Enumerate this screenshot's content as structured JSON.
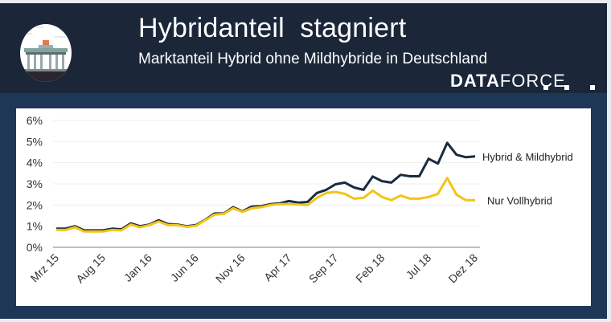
{
  "header": {
    "title": "Hybridanteil  stagniert",
    "subtitle": "Marktanteil Hybrid ohne Mildhybride in Deutschland",
    "brand_bold": "DATA",
    "brand_light": "FORCE",
    "logo": "brandenburg-gate-icon"
  },
  "colors": {
    "header_bg": "#1b2739",
    "band_bg": "#1f3756",
    "hybrid_mild": "#1b2a40",
    "full_hybrid": "#f2c417"
  },
  "chart_data": {
    "type": "line",
    "title": "",
    "xlabel": "",
    "ylabel": "",
    "ylim": [
      0,
      6
    ],
    "yticks": [
      "0%",
      "1%",
      "2%",
      "3%",
      "4%",
      "5%",
      "6%"
    ],
    "grid": true,
    "legend": "right, labels at line ends",
    "x": [
      "Mrz 15",
      "Apr 15",
      "Mai 15",
      "Jun 15",
      "Jul 15",
      "Aug 15",
      "Sep 15",
      "Okt 15",
      "Nov 15",
      "Dez 15",
      "Jan 16",
      "Feb 16",
      "Mrz 16",
      "Apr 16",
      "Mai 16",
      "Jun 16",
      "Jul 16",
      "Aug 16",
      "Sep 16",
      "Okt 16",
      "Nov 16",
      "Dez 16",
      "Jan 17",
      "Feb 17",
      "Mrz 17",
      "Apr 17",
      "Mai 17",
      "Jun 17",
      "Jul 17",
      "Aug 17",
      "Sep 17",
      "Okt 17",
      "Nov 17",
      "Dez 17",
      "Jan 18",
      "Feb 18",
      "Mrz 18",
      "Apr 18",
      "Mai 18",
      "Jun 18",
      "Jul 18",
      "Aug 18",
      "Sep 18",
      "Okt 18",
      "Nov 18",
      "Dez 18"
    ],
    "xtick_labels": [
      "Mrz 15",
      "Aug 15",
      "Jan 16",
      "Jun 16",
      "Nov 16",
      "Apr 17",
      "Sep 17",
      "Feb 18",
      "Jul 18",
      "Dez 18"
    ],
    "series": [
      {
        "name": "Hybrid & Mildhybrid",
        "color": "#1b2a40",
        "values": [
          0.88,
          0.88,
          1.0,
          0.8,
          0.8,
          0.8,
          0.88,
          0.85,
          1.13,
          1.0,
          1.08,
          1.28,
          1.1,
          1.08,
          1.0,
          1.05,
          1.3,
          1.6,
          1.6,
          1.9,
          1.7,
          1.93,
          1.95,
          2.04,
          2.08,
          2.19,
          2.11,
          2.15,
          2.57,
          2.72,
          2.98,
          3.06,
          2.83,
          2.72,
          3.35,
          3.13,
          3.06,
          3.43,
          3.36,
          3.36,
          4.19,
          3.96,
          4.94,
          4.38,
          4.26,
          4.3
        ]
      },
      {
        "name": "Nur Vollhybrid",
        "color": "#f2c417",
        "values": [
          0.82,
          0.82,
          0.95,
          0.75,
          0.75,
          0.75,
          0.82,
          0.8,
          1.08,
          0.95,
          1.05,
          1.22,
          1.05,
          1.05,
          0.97,
          1.02,
          1.28,
          1.55,
          1.58,
          1.85,
          1.68,
          1.85,
          1.9,
          2.0,
          2.04,
          2.05,
          2.02,
          2.0,
          2.34,
          2.57,
          2.62,
          2.53,
          2.3,
          2.34,
          2.68,
          2.38,
          2.23,
          2.45,
          2.3,
          2.3,
          2.38,
          2.53,
          3.28,
          2.49,
          2.23,
          2.23
        ]
      }
    ]
  }
}
